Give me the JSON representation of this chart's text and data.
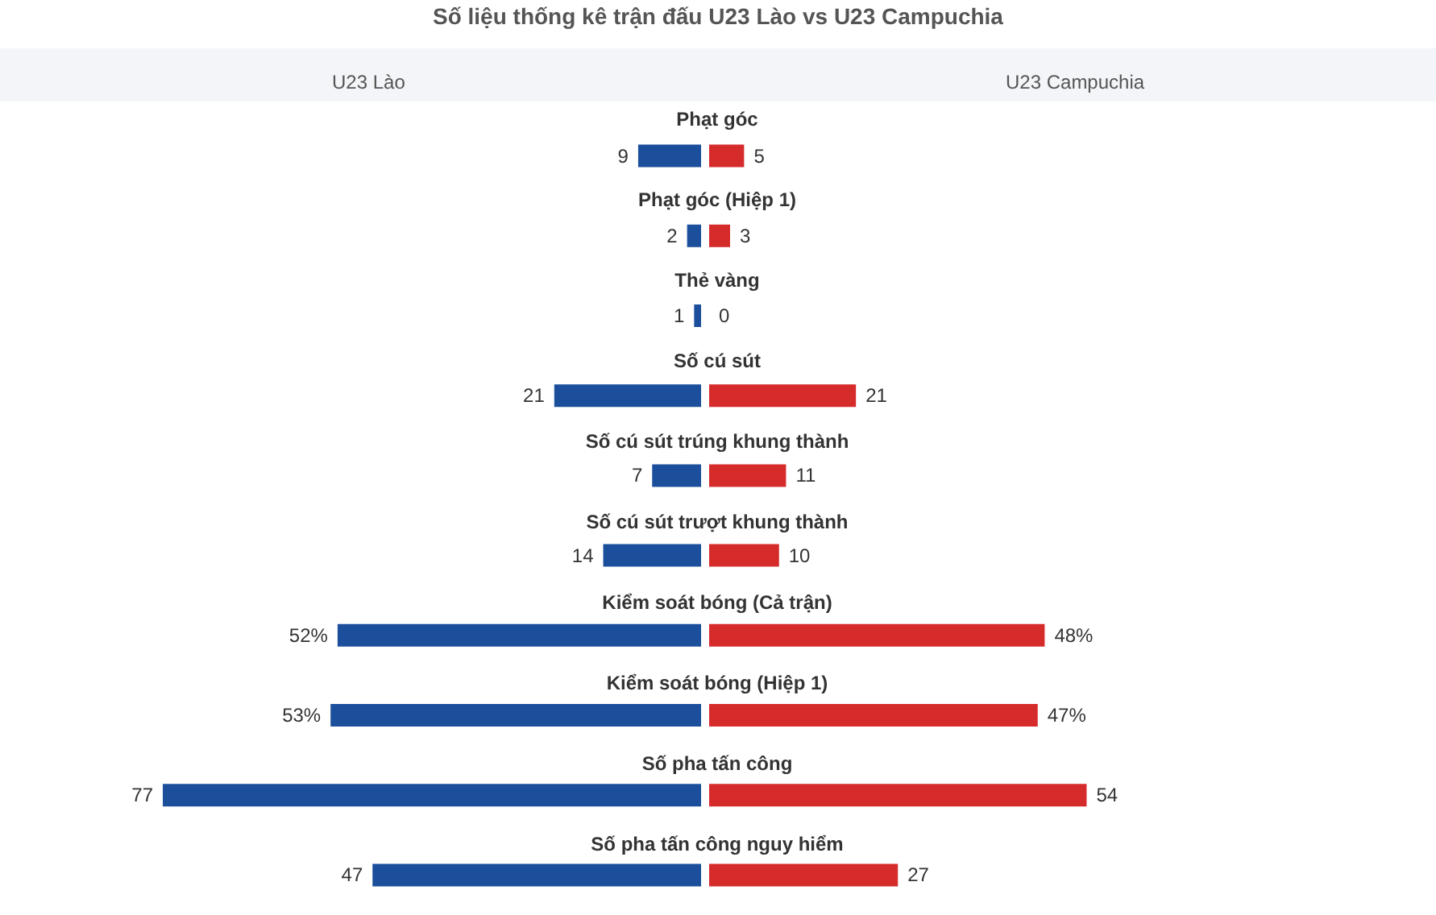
{
  "chart_data": [
    {
      "type": "bar",
      "orientation": "horizontal",
      "title": "Số liệu thống kê trận đấu U23 Lào vs U23 Campuchia",
      "categories": [
        "Phạt góc",
        "Phạt góc (Hiệp 1)",
        "Thẻ vàng",
        "Số cú sút",
        "Số cú sút trúng khung thành",
        "Số cú sút trượt khung thành",
        "Kiểm soát bóng (Cả trận)",
        "Kiểm soát bóng (Hiệp 1)",
        "Số pha tấn công",
        "Số pha tấn công nguy hiểm"
      ],
      "tick_labels": "y",
      "legend": "top",
      "series": [
        {
          "name": "U23 Lào",
          "color": "#1b4f9c",
          "values": [
            9,
            2,
            1,
            21,
            7,
            14,
            52,
            53,
            77,
            47
          ],
          "value_labels": [
            "9",
            "2",
            "1",
            "21",
            "7",
            "14",
            "52%",
            "53%",
            "77",
            "47"
          ]
        }
      ]
    },
    {
      "type": "bar",
      "orientation": "horizontal",
      "categories": [
        null,
        null,
        null,
        null,
        null,
        null,
        null,
        null,
        null,
        null
      ],
      "tick_labels": false,
      "legend": "top",
      "series": [
        {
          "name": "U23 Campuchia",
          "color": "#d62b2b",
          "values": [
            5,
            3,
            0,
            21,
            11,
            10,
            48,
            47,
            54,
            27
          ],
          "value_labels": [
            "5",
            "3",
            "0",
            "21",
            "11",
            "10",
            "48%",
            "47%",
            "54",
            "27"
          ]
        }
      ]
    }
  ]
}
